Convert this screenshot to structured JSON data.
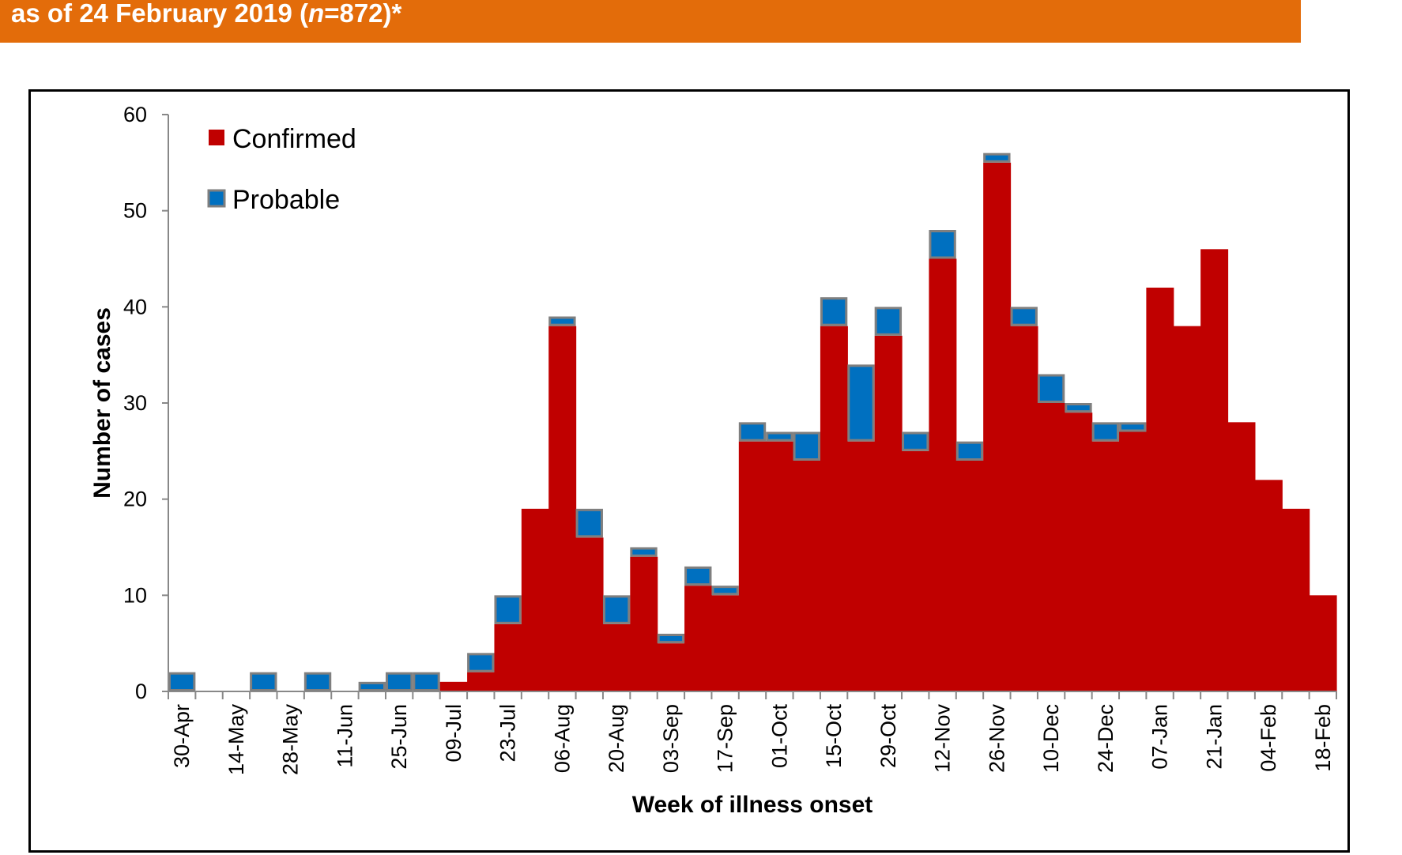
{
  "header": {
    "title_prefix": "as of 24 February 2019 (",
    "title_italic": "n",
    "title_suffix": "=872)*"
  },
  "colors": {
    "banner": "#e36c0a",
    "confirmed": "#c00000",
    "probable": "#0070c0",
    "probable_border": "#7f7f7f"
  },
  "chart_data": {
    "type": "bar",
    "stacked": true,
    "title": "",
    "xlabel": "Week of illness onset",
    "ylabel": "Number of cases",
    "ylim": [
      0,
      60
    ],
    "yticks": [
      0,
      10,
      20,
      30,
      40,
      50,
      60
    ],
    "legend_position": "top-left",
    "categories": [
      "30-Apr",
      "07-May",
      "14-May",
      "21-May",
      "28-May",
      "04-Jun",
      "11-Jun",
      "18-Jun",
      "25-Jun",
      "02-Jul",
      "09-Jul",
      "16-Jul",
      "23-Jul",
      "30-Jul",
      "06-Aug",
      "13-Aug",
      "20-Aug",
      "27-Aug",
      "03-Sep",
      "10-Sep",
      "17-Sep",
      "24-Sep",
      "01-Oct",
      "08-Oct",
      "15-Oct",
      "22-Oct",
      "29-Oct",
      "05-Nov",
      "12-Nov",
      "19-Nov",
      "26-Nov",
      "03-Dec",
      "10-Dec",
      "17-Dec",
      "24-Dec",
      "31-Dec",
      "07-Jan",
      "14-Jan",
      "21-Jan",
      "28-Jan",
      "04-Feb",
      "11-Feb",
      "18-Feb"
    ],
    "tick_labels": [
      "30-Apr",
      "14-May",
      "28-May",
      "11-Jun",
      "25-Jun",
      "09-Jul",
      "23-Jul",
      "06-Aug",
      "20-Aug",
      "03-Sep",
      "17-Sep",
      "01-Oct",
      "15-Oct",
      "29-Oct",
      "12-Nov",
      "26-Nov",
      "10-Dec",
      "24-Dec",
      "07-Jan",
      "21-Jan",
      "04-Feb",
      "18-Feb"
    ],
    "series": [
      {
        "name": "Confirmed",
        "values": [
          0,
          0,
          0,
          0,
          0,
          0,
          0,
          0,
          0,
          0,
          1,
          2,
          7,
          19,
          38,
          16,
          7,
          14,
          5,
          11,
          10,
          26,
          26,
          24,
          38,
          26,
          37,
          25,
          45,
          24,
          55,
          38,
          30,
          29,
          26,
          27,
          42,
          38,
          46,
          28,
          22,
          19,
          10
        ]
      },
      {
        "name": "Probable",
        "values": [
          2,
          0,
          0,
          2,
          0,
          2,
          0,
          1,
          2,
          2,
          0,
          2,
          3,
          0,
          1,
          3,
          3,
          1,
          1,
          2,
          1,
          2,
          1,
          3,
          3,
          8,
          3,
          2,
          3,
          2,
          1,
          2,
          3,
          1,
          2,
          1,
          0,
          0,
          0,
          0,
          0,
          0,
          0
        ]
      }
    ]
  }
}
